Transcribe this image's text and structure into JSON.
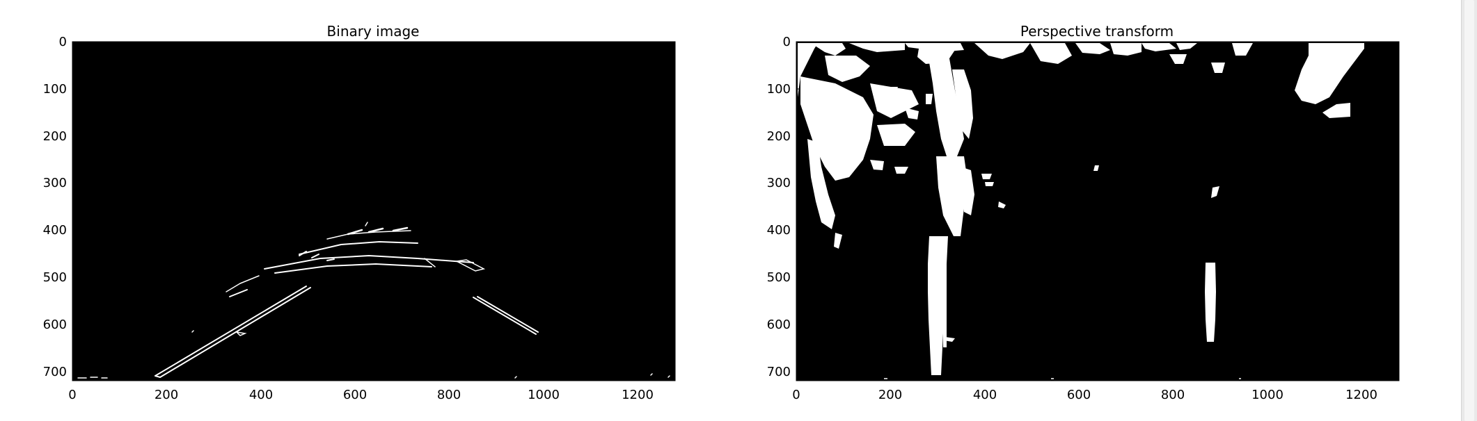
{
  "panels": [
    {
      "title": "Binary image",
      "xticks": [
        "0",
        "200",
        "400",
        "600",
        "800",
        "1000",
        "1200"
      ],
      "yticks": [
        "0",
        "100",
        "200",
        "300",
        "400",
        "500",
        "600",
        "700"
      ],
      "xlim": [
        0,
        1280
      ],
      "ylim": [
        0,
        720
      ]
    },
    {
      "title": "Perspective transform",
      "xticks": [
        "0",
        "200",
        "400",
        "600",
        "800",
        "1000",
        "1200"
      ],
      "yticks": [
        "0",
        "100",
        "200",
        "300",
        "400",
        "500",
        "600",
        "700"
      ],
      "xlim": [
        0,
        1280
      ],
      "ylim": [
        0,
        720
      ]
    }
  ],
  "colors": {
    "background": "#000000",
    "foreground": "#ffffff",
    "page": "#ffffff"
  }
}
